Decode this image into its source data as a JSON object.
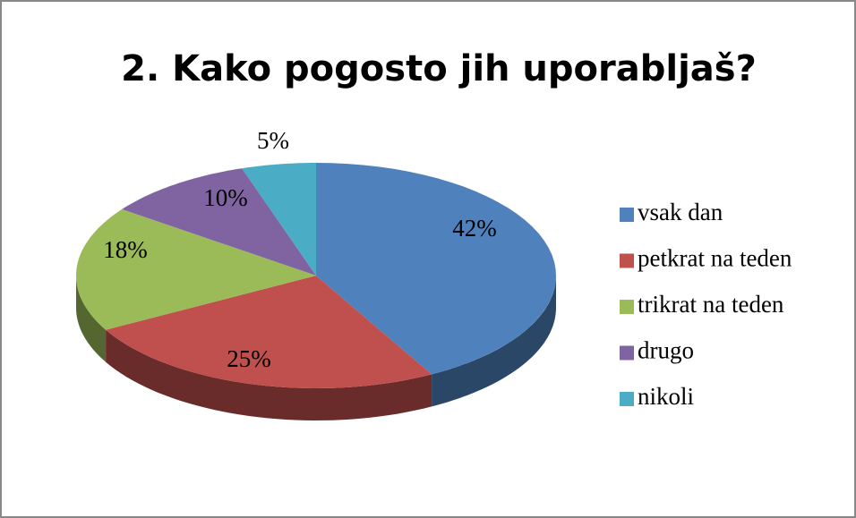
{
  "chart_data": {
    "type": "pie",
    "title": "2. Kako pogosto jih uporabljaš?",
    "categories": [
      "vsak dan",
      "petkrat na teden",
      "trikrat na teden",
      "drugo",
      "nikoli"
    ],
    "values": [
      42,
      25,
      18,
      10,
      5
    ],
    "value_labels": [
      "42%",
      "25%",
      "18%",
      "10%",
      "5%"
    ],
    "colors": [
      "#4f81bd",
      "#c0504d",
      "#9bbb59",
      "#8064a2",
      "#4bacc6"
    ],
    "legend": "right"
  }
}
